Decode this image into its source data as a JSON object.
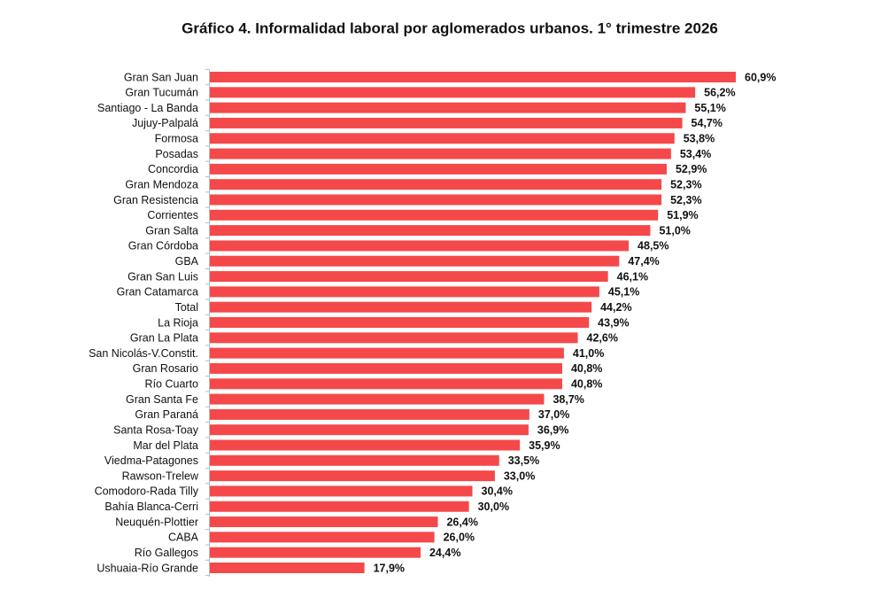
{
  "chart_data": {
    "type": "bar",
    "orientation": "horizontal",
    "title": "Gráfico 4. Informalidad laboral por aglomerados urbanos. 1° trimestre 2026",
    "categories": [
      "Gran San Juan",
      "Gran Tucumán",
      "Santiago - La Banda",
      "Jujuy-Palpalá",
      "Formosa",
      "Posadas",
      "Concordia",
      "Gran Mendoza",
      "Gran Resistencia",
      "Corrientes",
      "Gran Salta",
      "Gran Córdoba",
      "GBA",
      "Gran San Luis",
      "Gran Catamarca",
      "Total",
      "La Rioja",
      "Gran La Plata",
      "San Nicolás-V.Constit.",
      "Gran Rosario",
      "Río Cuarto",
      "Gran Santa Fe",
      "Gran Paraná",
      "Santa Rosa-Toay",
      "Mar del Plata",
      "Viedma-Patagones",
      "Rawson-Trelew",
      "Comodoro-Rada Tilly",
      "Bahía Blanca-Cerri",
      "Neuquén-Plottier",
      "CABA",
      "Río Gallegos",
      "Ushuaia-Río Grande"
    ],
    "values": [
      60.9,
      56.2,
      55.1,
      54.7,
      53.8,
      53.4,
      52.9,
      52.3,
      52.3,
      51.9,
      51.0,
      48.5,
      47.4,
      46.1,
      45.1,
      44.2,
      43.9,
      42.6,
      41.0,
      40.8,
      40.8,
      38.7,
      37.0,
      36.9,
      35.9,
      33.5,
      33.0,
      30.4,
      30.0,
      26.4,
      26.0,
      24.4,
      17.9
    ],
    "value_labels": [
      "60,9%",
      "56,2%",
      "55,1%",
      "54,7%",
      "53,8%",
      "53,4%",
      "52,9%",
      "52,3%",
      "52,3%",
      "51,9%",
      "51,0%",
      "48,5%",
      "47,4%",
      "46,1%",
      "45,1%",
      "44,2%",
      "43,9%",
      "42,6%",
      "41,0%",
      "40,8%",
      "40,8%",
      "38,7%",
      "37,0%",
      "36,9%",
      "35,9%",
      "33,5%",
      "33,0%",
      "30,4%",
      "30,0%",
      "26,4%",
      "26,0%",
      "24,4%",
      "17,9%"
    ],
    "color": "#f5484a"
  }
}
